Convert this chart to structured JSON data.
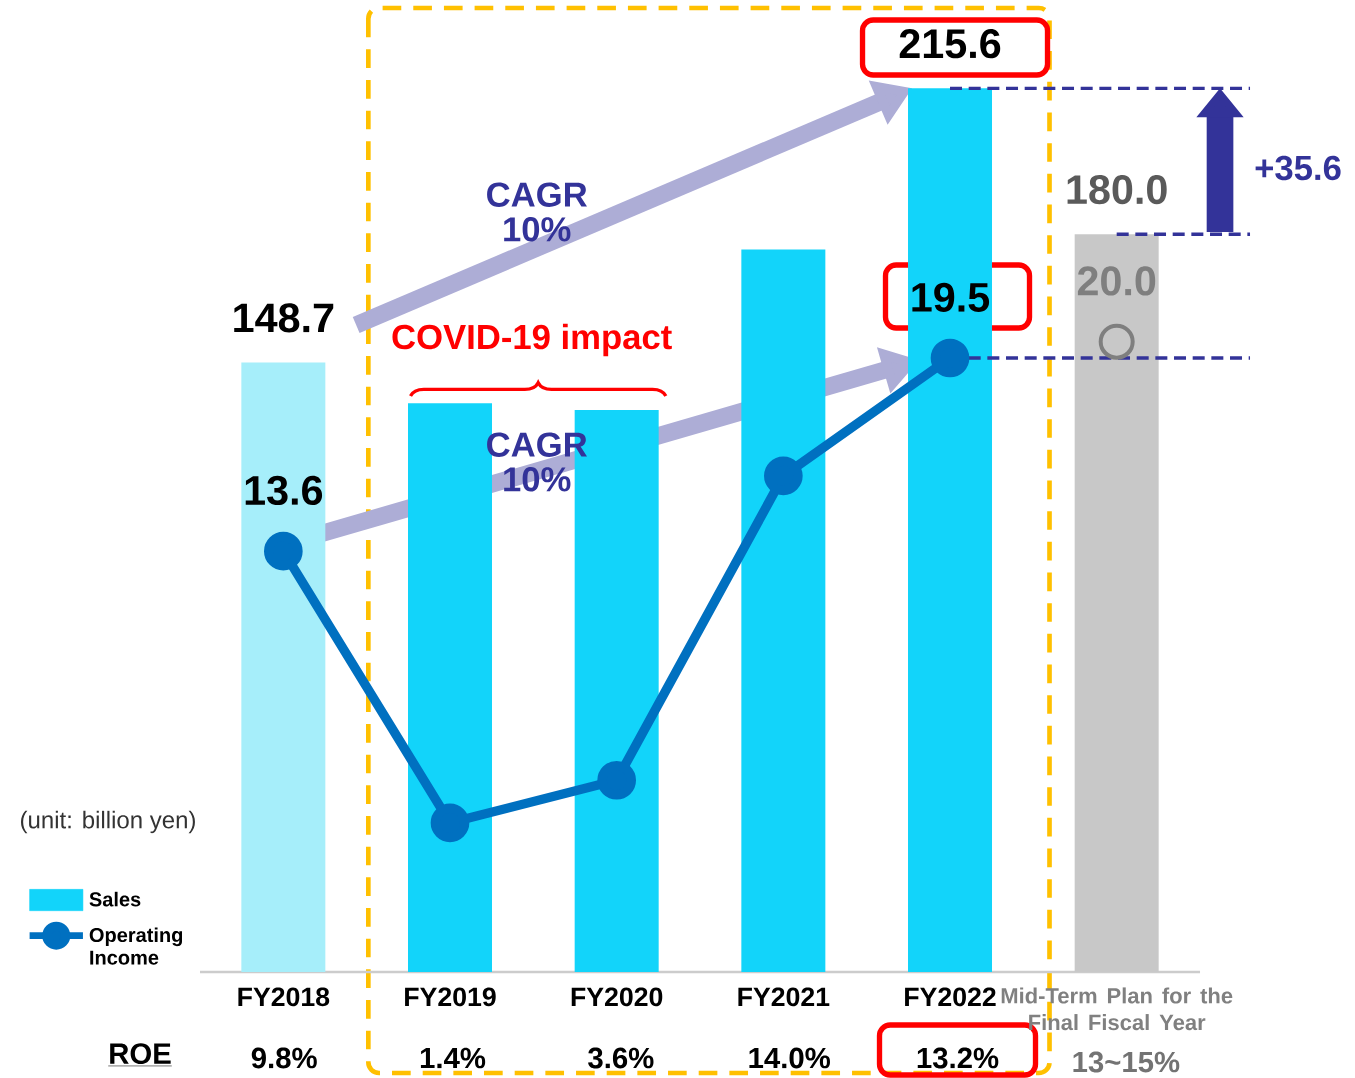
{
  "chart_data": {
    "type": "bar",
    "categories": [
      "FY2018",
      "FY2019",
      "FY2020",
      "FY2021",
      "FY2022",
      "Mid-Term Plan for the Final Fiscal Year"
    ],
    "series": [
      {
        "name": "Sales",
        "color": "#12d4fa",
        "colors": [
          "#a6eefa",
          "#12d4fa",
          "#12d4fa",
          "#12d4fa",
          "#12d4fa",
          "#c8c8c8"
        ],
        "values": [
          148.7,
          138.8,
          137.1,
          176.3,
          215.6,
          180.0
        ],
        "value_labels": [
          "148.7",
          null,
          null,
          null,
          "215.6",
          "180.0"
        ]
      },
      {
        "name": "Operating Income",
        "type": "line",
        "axis": "y2",
        "color": "#0070c0",
        "values": [
          13.6,
          5.3,
          6.6,
          15.9,
          19.5,
          null
        ],
        "value_labels": [
          "13.6",
          null,
          null,
          null,
          "19.5",
          null
        ]
      },
      {
        "type": "scatter",
        "axis": "y2",
        "color": "#7f7f7f",
        "values": [
          null,
          null,
          null,
          null,
          null,
          20.0
        ],
        "value_labels": [
          null,
          null,
          null,
          null,
          null,
          "20.0"
        ]
      }
    ],
    "tick_labels": "x",
    "marker": "circle",
    "legend": "bottom left",
    "ref_lines": [
      {
        "axis": "y",
        "value": 215.6,
        "color": "#333399",
        "line_style": "dashed"
      },
      {
        "axis": "y",
        "value": 180.0,
        "color": "#333399",
        "line_style": "dashed"
      },
      {
        "axis": "y2",
        "value": 19.5,
        "color": "#333399",
        "line_style": "dashed"
      }
    ],
    "annotations": [
      "(unit: billion yen)",
      "ROE",
      "9.8%",
      "1.4%",
      "3.6%",
      "14.0%",
      "13.2%",
      "13~15%",
      "COVID-19 impact",
      "CAGR 10%",
      "CAGR 10%",
      "+35.6"
    ]
  }
}
